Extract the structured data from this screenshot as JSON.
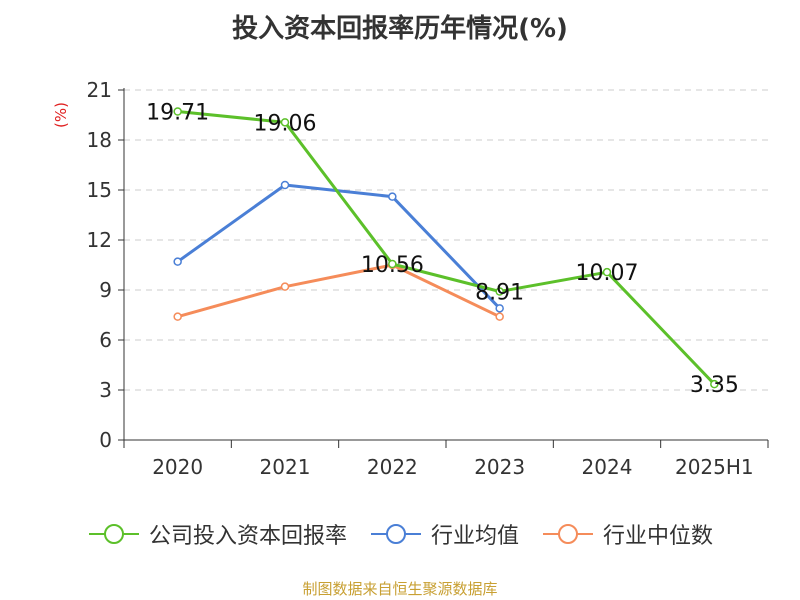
{
  "title": "投入资本回报率历年情况(%)",
  "source": "制图数据来自恒生聚源数据库",
  "chart_data": {
    "type": "line",
    "title": "投入资本回报率历年情况(%)",
    "xlabel": "",
    "ylabel": "(%)",
    "categories": [
      "2020",
      "2021",
      "2022",
      "2023",
      "2024",
      "2025H1"
    ],
    "ylim": [
      0,
      21
    ],
    "yticks": [
      0,
      3,
      6,
      9,
      12,
      15,
      18,
      21
    ],
    "grid": true,
    "legend_position": "bottom",
    "series": [
      {
        "name": "公司投入资本回报率",
        "color": "#5cc02a",
        "values": [
          19.71,
          19.06,
          10.56,
          8.91,
          10.07,
          3.35
        ],
        "labels": true
      },
      {
        "name": "行业均值",
        "color": "#4a7fd6",
        "values": [
          10.7,
          15.3,
          14.6,
          7.9,
          null,
          null
        ],
        "labels": false
      },
      {
        "name": "行业中位数",
        "color": "#f58c5a",
        "values": [
          7.4,
          9.2,
          10.5,
          7.4,
          null,
          null
        ],
        "labels": false
      }
    ]
  }
}
